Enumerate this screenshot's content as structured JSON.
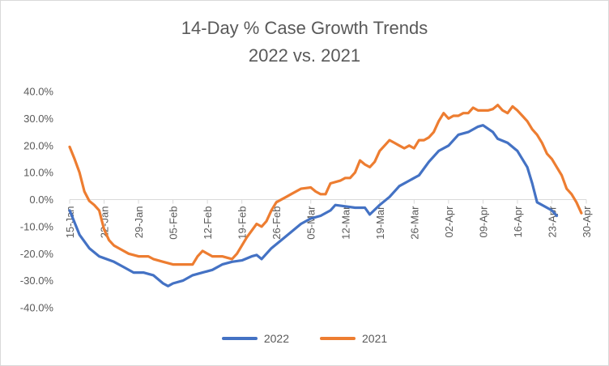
{
  "chart_data": {
    "type": "line",
    "title": "14-Day % Case Growth Trends",
    "subtitle": "2022 vs. 2021",
    "xlabel": "",
    "ylabel": "",
    "x_start": "15-Jan",
    "x_end": "30-Apr",
    "x_ticks": [
      "15-Jan",
      "22-Jan",
      "29-Jan",
      "05-Feb",
      "12-Feb",
      "19-Feb",
      "26-Feb",
      "05-Mar",
      "12-Mar",
      "19-Mar",
      "26-Mar",
      "02-Apr",
      "09-Apr",
      "16-Apr",
      "23-Apr",
      "30-Apr"
    ],
    "y_ticks": [
      "40.0%",
      "30.0%",
      "20.0%",
      "10.0%",
      "0.0%",
      "-10.0%",
      "-20.0%",
      "-30.0%",
      "-40.0%"
    ],
    "ylim": [
      -40,
      40
    ],
    "y_unit": "%",
    "grid": false,
    "legend_position": "bottom",
    "series": [
      {
        "name": "2022",
        "color": "#4472C4",
        "points": [
          [
            "15-Jan",
            -4
          ],
          [
            "17-Jan",
            -13
          ],
          [
            "19-Jan",
            -18
          ],
          [
            "21-Jan",
            -21
          ],
          [
            "24-Jan",
            -23
          ],
          [
            "26-Jan",
            -25
          ],
          [
            "28-Jan",
            -27
          ],
          [
            "30-Jan",
            -27
          ],
          [
            "01-Feb",
            -28
          ],
          [
            "03-Feb",
            -31
          ],
          [
            "04-Feb",
            -32
          ],
          [
            "05-Feb",
            -31
          ],
          [
            "07-Feb",
            -30
          ],
          [
            "09-Feb",
            -28
          ],
          [
            "11-Feb",
            -27
          ],
          [
            "13-Feb",
            -26
          ],
          [
            "15-Feb",
            -24
          ],
          [
            "17-Feb",
            -23
          ],
          [
            "19-Feb",
            -22.5
          ],
          [
            "21-Feb",
            -21
          ],
          [
            "22-Feb",
            -20.5
          ],
          [
            "23-Feb",
            -22
          ],
          [
            "25-Feb",
            -18
          ],
          [
            "27-Feb",
            -15
          ],
          [
            "01-Mar",
            -12
          ],
          [
            "03-Mar",
            -9
          ],
          [
            "05-Mar",
            -7
          ],
          [
            "07-Mar",
            -6
          ],
          [
            "09-Mar",
            -4
          ],
          [
            "10-Mar",
            -2
          ],
          [
            "12-Mar",
            -2.5
          ],
          [
            "14-Mar",
            -3
          ],
          [
            "16-Mar",
            -3
          ],
          [
            "17-Mar",
            -5.5
          ],
          [
            "19-Mar",
            -2
          ],
          [
            "21-Mar",
            1
          ],
          [
            "23-Mar",
            5
          ],
          [
            "25-Mar",
            7
          ],
          [
            "27-Mar",
            9
          ],
          [
            "29-Mar",
            14
          ],
          [
            "31-Mar",
            18
          ],
          [
            "02-Apr",
            20
          ],
          [
            "04-Apr",
            24
          ],
          [
            "06-Apr",
            25
          ],
          [
            "08-Apr",
            27
          ],
          [
            "09-Apr",
            27.5
          ],
          [
            "11-Apr",
            25
          ],
          [
            "12-Apr",
            22.5
          ],
          [
            "14-Apr",
            21
          ],
          [
            "16-Apr",
            18
          ],
          [
            "18-Apr",
            12
          ],
          [
            "19-Apr",
            6
          ],
          [
            "20-Apr",
            -1
          ],
          [
            "22-Apr",
            -3
          ],
          [
            "23-Apr",
            -4
          ],
          [
            "24-Apr",
            -6
          ]
        ]
      },
      {
        "name": "2021",
        "color": "#ED7D31",
        "points": [
          [
            "15-Jan",
            19.5
          ],
          [
            "16-Jan",
            15
          ],
          [
            "17-Jan",
            10
          ],
          [
            "18-Jan",
            3
          ],
          [
            "19-Jan",
            -0.5
          ],
          [
            "20-Jan",
            -2
          ],
          [
            "21-Jan",
            -4
          ],
          [
            "22-Jan",
            -11
          ],
          [
            "23-Jan",
            -15
          ],
          [
            "24-Jan",
            -17
          ],
          [
            "25-Jan",
            -18
          ],
          [
            "27-Jan",
            -20
          ],
          [
            "29-Jan",
            -21
          ],
          [
            "31-Jan",
            -21
          ],
          [
            "01-Feb",
            -22
          ],
          [
            "03-Feb",
            -23
          ],
          [
            "05-Feb",
            -24
          ],
          [
            "07-Feb",
            -24
          ],
          [
            "09-Feb",
            -24
          ],
          [
            "10-Feb",
            -21
          ],
          [
            "11-Feb",
            -19
          ],
          [
            "13-Feb",
            -21
          ],
          [
            "15-Feb",
            -21
          ],
          [
            "17-Feb",
            -22
          ],
          [
            "18-Feb",
            -20
          ],
          [
            "20-Feb",
            -14
          ],
          [
            "22-Feb",
            -9
          ],
          [
            "23-Feb",
            -10
          ],
          [
            "24-Feb",
            -8
          ],
          [
            "25-Feb",
            -4
          ],
          [
            "26-Feb",
            -1
          ],
          [
            "28-Feb",
            1
          ],
          [
            "01-Mar",
            2
          ],
          [
            "03-Mar",
            4
          ],
          [
            "05-Mar",
            4.5
          ],
          [
            "06-Mar",
            3
          ],
          [
            "07-Mar",
            2
          ],
          [
            "08-Mar",
            2
          ],
          [
            "09-Mar",
            6
          ],
          [
            "11-Mar",
            7
          ],
          [
            "12-Mar",
            8
          ],
          [
            "13-Mar",
            8
          ],
          [
            "14-Mar",
            10
          ],
          [
            "15-Mar",
            14.5
          ],
          [
            "16-Mar",
            13
          ],
          [
            "17-Mar",
            12
          ],
          [
            "18-Mar",
            14
          ],
          [
            "19-Mar",
            18
          ],
          [
            "20-Mar",
            20
          ],
          [
            "21-Mar",
            22
          ],
          [
            "22-Mar",
            21
          ],
          [
            "23-Mar",
            20
          ],
          [
            "24-Mar",
            19
          ],
          [
            "25-Mar",
            20
          ],
          [
            "26-Mar",
            19
          ],
          [
            "27-Mar",
            22
          ],
          [
            "28-Mar",
            22
          ],
          [
            "29-Mar",
            23
          ],
          [
            "30-Mar",
            25
          ],
          [
            "31-Mar",
            29
          ],
          [
            "01-Apr",
            32
          ],
          [
            "02-Apr",
            30
          ],
          [
            "03-Apr",
            31
          ],
          [
            "04-Apr",
            31
          ],
          [
            "05-Apr",
            32
          ],
          [
            "06-Apr",
            32
          ],
          [
            "07-Apr",
            34
          ],
          [
            "08-Apr",
            33
          ],
          [
            "09-Apr",
            33
          ],
          [
            "10-Apr",
            33
          ],
          [
            "11-Apr",
            33.5
          ],
          [
            "12-Apr",
            35
          ],
          [
            "13-Apr",
            33
          ],
          [
            "14-Apr",
            32
          ],
          [
            "15-Apr",
            34.5
          ],
          [
            "16-Apr",
            33
          ],
          [
            "17-Apr",
            31
          ],
          [
            "18-Apr",
            29
          ],
          [
            "19-Apr",
            26
          ],
          [
            "20-Apr",
            24
          ],
          [
            "21-Apr",
            21
          ],
          [
            "22-Apr",
            17
          ],
          [
            "23-Apr",
            15
          ],
          [
            "24-Apr",
            12
          ],
          [
            "25-Apr",
            9
          ],
          [
            "26-Apr",
            4
          ],
          [
            "27-Apr",
            2
          ],
          [
            "28-Apr",
            -1
          ],
          [
            "29-Apr",
            -5
          ]
        ]
      }
    ]
  }
}
